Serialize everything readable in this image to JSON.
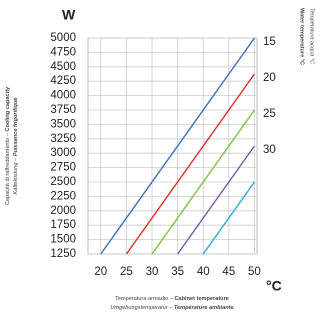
{
  "chart_data": {
    "type": "line",
    "y_unit": "W",
    "x_unit": "°C",
    "xlabel_lines": [
      [
        "Temperatura armadio – ",
        "Cabinet temperature"
      ],
      [
        "Umgebungstemperatur – ",
        "Température ambiante"
      ]
    ],
    "ylabel_lines": [
      [
        "Capacità di raffreddamento – ",
        "Cooling capacity"
      ],
      [
        "Kälteleistung – ",
        "Puissance frigorifique"
      ]
    ],
    "y2label_lines": [
      [
        "Temperatura acqua °C"
      ],
      [
        "Water temperature °C"
      ]
    ],
    "xlim": [
      17.5,
      50.5
    ],
    "xticks": [
      20,
      25,
      30,
      35,
      40,
      45,
      50
    ],
    "ylim": [
      1250,
      5000
    ],
    "yticks": [
      1250,
      1500,
      1750,
      2000,
      2250,
      2500,
      2750,
      3000,
      3250,
      3500,
      3750,
      4000,
      4250,
      4500,
      4750,
      5000
    ],
    "grid": true,
    "series": [
      {
        "name": "15",
        "color": "#3a6fb5",
        "x": [
          20,
          50
        ],
        "values": [
          1250,
          5000
        ]
      },
      {
        "name": "20",
        "color": "#d9302a",
        "x": [
          25,
          50
        ],
        "values": [
          1250,
          4375
        ]
      },
      {
        "name": "25",
        "color": "#7cc242",
        "x": [
          30,
          50
        ],
        "values": [
          1250,
          3750
        ]
      },
      {
        "name": "30",
        "color": "#7a55a8",
        "x": [
          35,
          50
        ],
        "values": [
          1250,
          3125
        ]
      },
      {
        "name": null,
        "color": "#2aa9d8",
        "x": [
          40,
          50
        ],
        "values": [
          1250,
          2500
        ]
      }
    ]
  }
}
